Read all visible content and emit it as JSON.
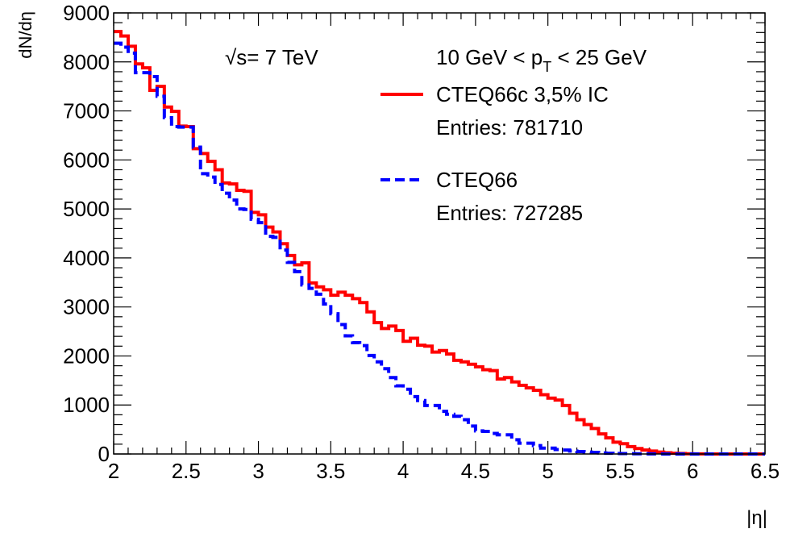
{
  "chart_data": {
    "type": "line",
    "xlabel": "|η|",
    "ylabel": "dN/dη",
    "xlim": [
      2,
      6.5
    ],
    "ylim": [
      0,
      9000
    ],
    "x_ticks": [
      "2",
      "2.5",
      "3",
      "3.5",
      "4",
      "4.5",
      "5",
      "5.5",
      "6",
      "6.5"
    ],
    "y_ticks": [
      "0",
      "1000",
      "2000",
      "3000",
      "4000",
      "5000",
      "6000",
      "7000",
      "8000",
      "9000"
    ],
    "bin_width": 0.05,
    "annotations": {
      "sqrt_s": "√s= 7 TeV",
      "pt_range_prefix": "10 GeV < p",
      "pt_range_sub": "T",
      "pt_range_suffix": " < 25 GeV"
    },
    "legend": {
      "placement": "top-right"
    },
    "series": [
      {
        "name": "CTEQ66c 3,5% IC",
        "entries_label": "Entries: 781710",
        "color": "#ff0000",
        "style": "solid",
        "x_start": 2.0,
        "values": [
          8620,
          8530,
          8320,
          7960,
          7880,
          7420,
          7500,
          7080,
          6990,
          6690,
          6680,
          6230,
          6130,
          5970,
          5800,
          5530,
          5510,
          5380,
          5360,
          4930,
          4880,
          4630,
          4530,
          4290,
          4050,
          3860,
          3900,
          3490,
          3410,
          3350,
          3240,
          3300,
          3240,
          3170,
          3090,
          2900,
          2680,
          2560,
          2610,
          2520,
          2300,
          2360,
          2220,
          2200,
          2080,
          2110,
          2040,
          1910,
          1880,
          1830,
          1780,
          1720,
          1700,
          1530,
          1560,
          1470,
          1400,
          1350,
          1300,
          1210,
          1140,
          1100,
          990,
          830,
          700,
          600,
          520,
          410,
          330,
          240,
          210,
          150,
          110,
          80,
          60,
          40,
          25,
          15,
          10,
          5,
          3,
          2,
          1,
          0,
          0,
          0,
          0,
          0,
          0,
          0
        ]
      },
      {
        "name": "CTEQ66",
        "entries_label": "Entries: 727285",
        "color": "#0000ff",
        "style": "dashed",
        "x_start": 2.0,
        "values": [
          8380,
          8300,
          8180,
          7780,
          7780,
          7700,
          7300,
          6860,
          6680,
          6670,
          6670,
          6260,
          5720,
          5650,
          5500,
          5320,
          5180,
          5000,
          4990,
          4790,
          4720,
          4440,
          4420,
          4160,
          3910,
          3720,
          3450,
          3380,
          3260,
          3060,
          2860,
          2640,
          2410,
          2270,
          2210,
          2010,
          1880,
          1740,
          1560,
          1390,
          1320,
          1170,
          1090,
          990,
          990,
          870,
          810,
          770,
          700,
          570,
          470,
          460,
          420,
          390,
          390,
          290,
          220,
          220,
          170,
          120,
          120,
          90,
          80,
          60,
          50,
          40,
          30,
          20,
          15,
          10,
          8,
          6,
          5,
          4,
          3,
          2,
          1,
          1,
          0,
          0,
          0,
          0,
          0,
          0,
          0,
          0,
          0,
          0,
          0,
          0
        ]
      }
    ]
  }
}
